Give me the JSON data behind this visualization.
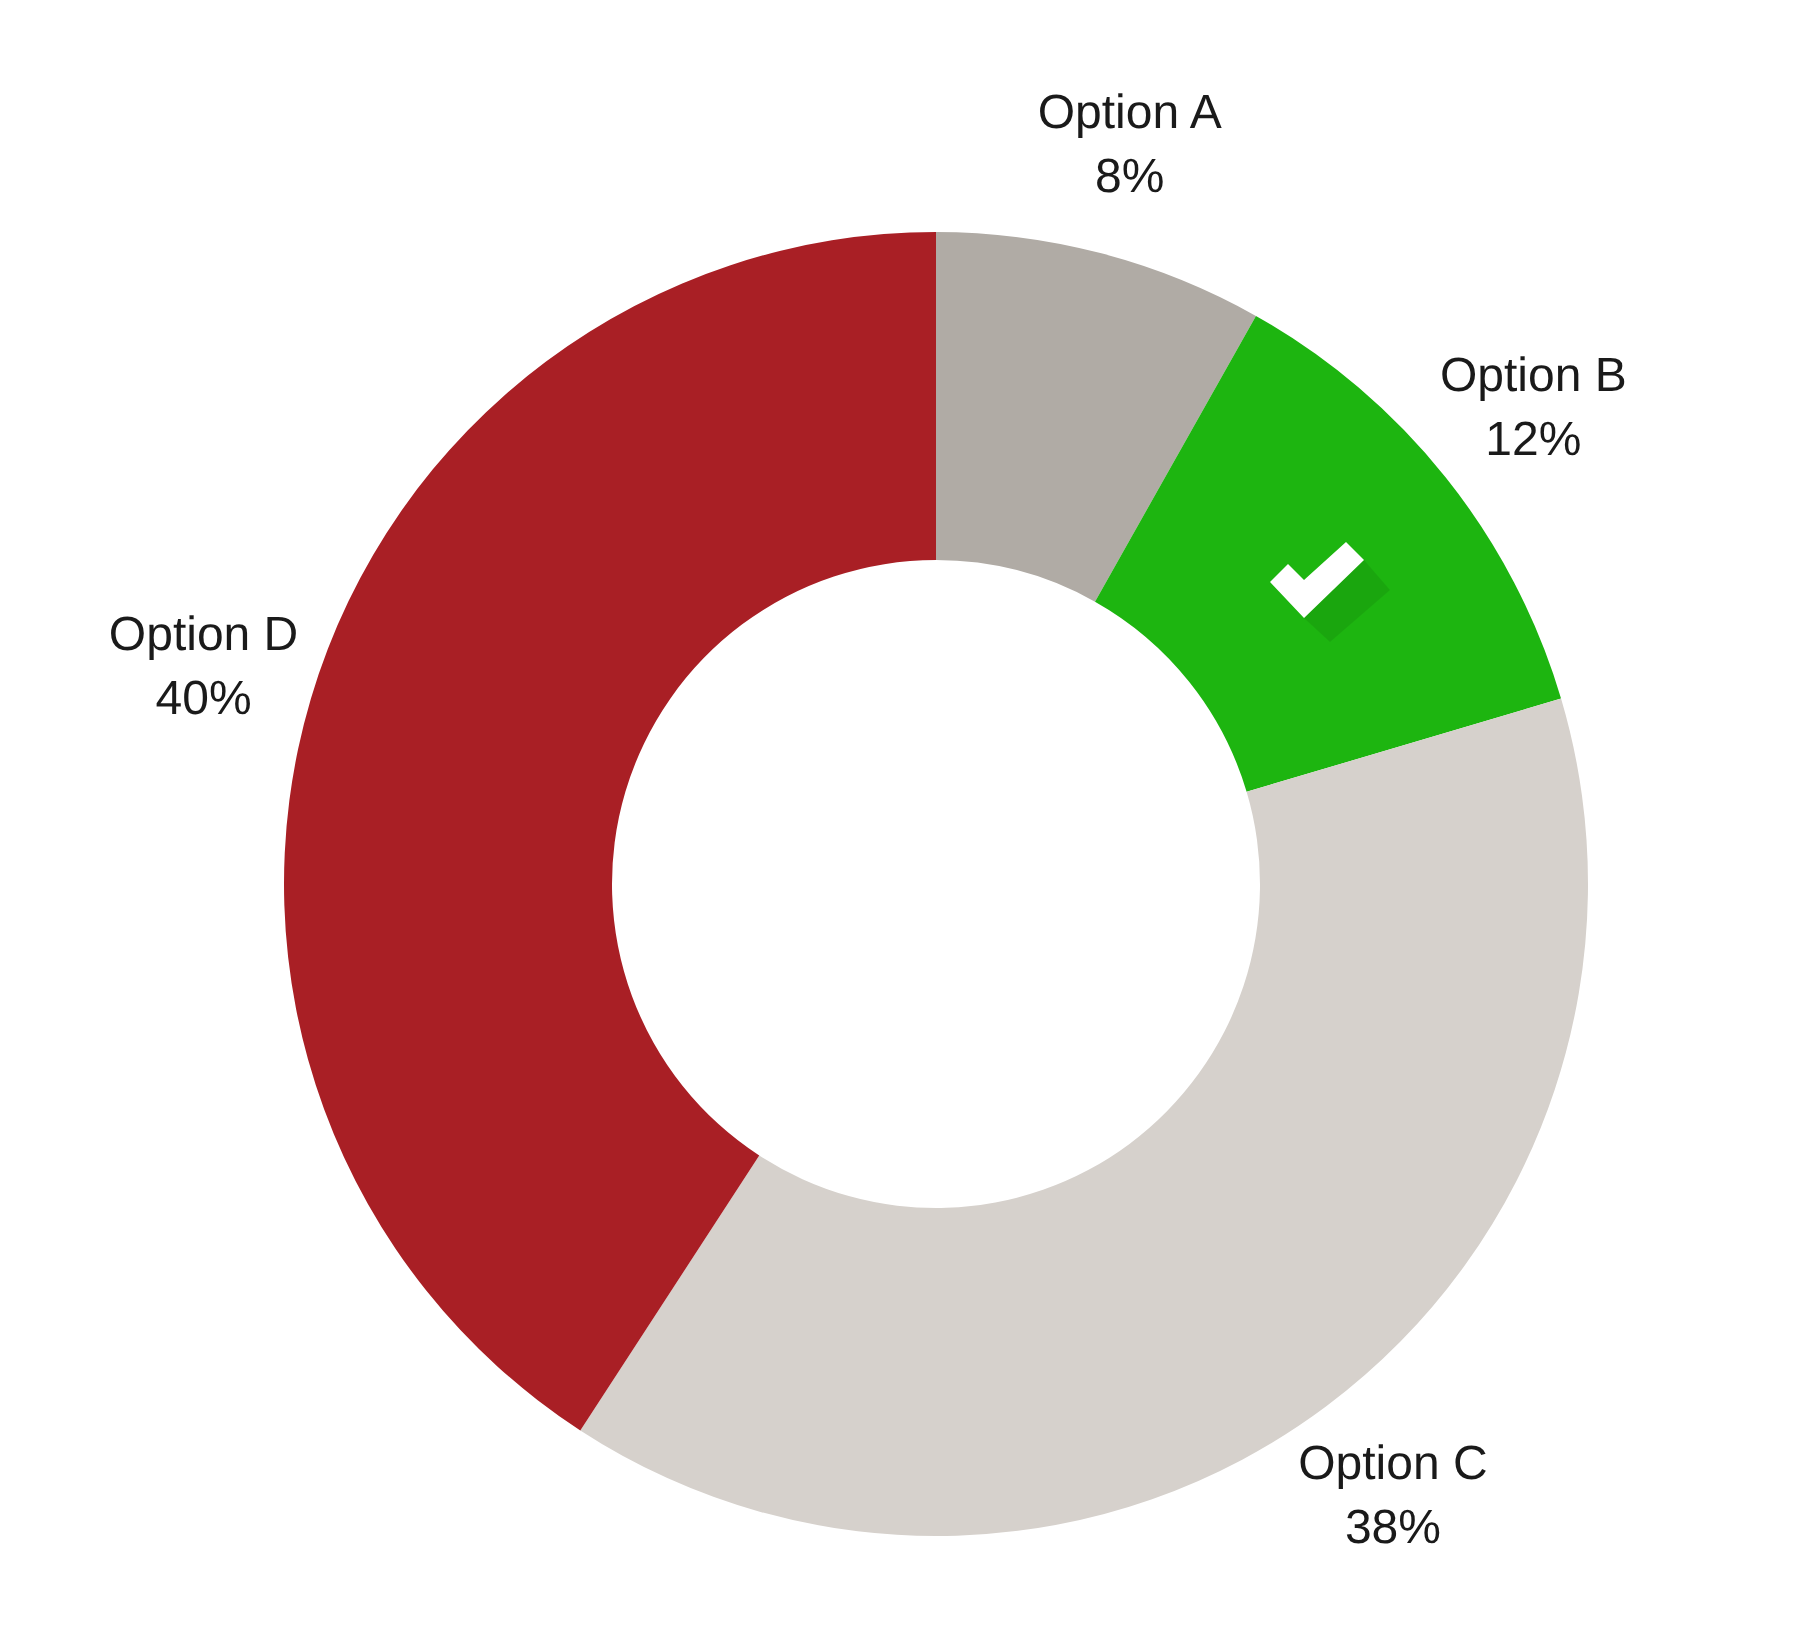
{
  "chart_data": {
    "type": "donut",
    "categories": [
      "Option A",
      "Option B",
      "Option C",
      "Option D"
    ],
    "values": [
      8,
      12,
      38,
      40
    ],
    "value_labels": [
      "8%",
      "12%",
      "38%",
      "40%"
    ],
    "colors": [
      "#b0aba5",
      "#1db510",
      "#d6d1cc",
      "#a91f25"
    ]
  }
}
